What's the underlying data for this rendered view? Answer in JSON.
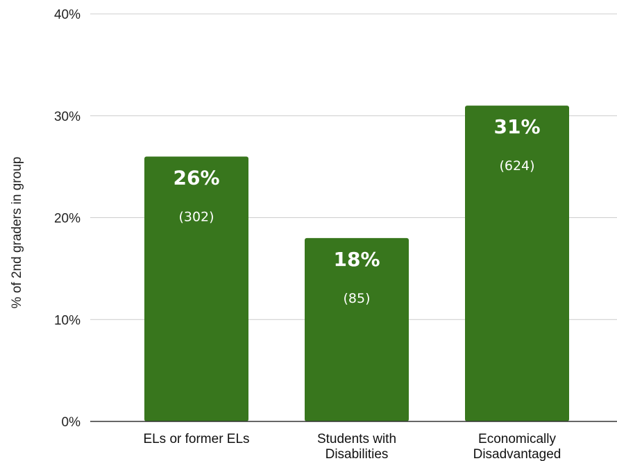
{
  "chart_data": {
    "type": "bar",
    "categories": [
      [
        "ELs or former ELs"
      ],
      [
        "Students with",
        "Disabilities"
      ],
      [
        "Economically",
        "Disadvantaged"
      ]
    ],
    "values": [
      26,
      18,
      31
    ],
    "value_labels": [
      "26%",
      "18%",
      "31%"
    ],
    "counts": [
      "(302)",
      "(85)",
      "(624)"
    ],
    "ylabel": "% of 2nd graders in group",
    "ylim": [
      0,
      40
    ],
    "yticks": [
      0,
      10,
      20,
      30,
      40
    ],
    "ytick_labels": [
      "0%",
      "10%",
      "20%",
      "30%",
      "40%"
    ],
    "grid": true,
    "bar_color": "#38761d"
  }
}
